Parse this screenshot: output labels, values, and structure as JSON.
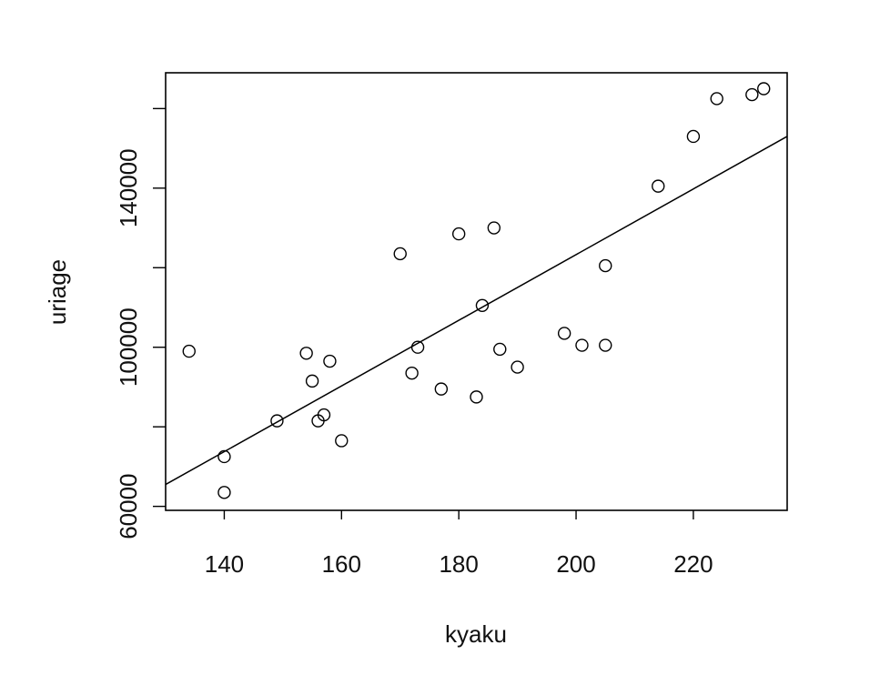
{
  "chart_data": {
    "type": "scatter",
    "xlabel": "kyaku",
    "ylabel": "uriage",
    "xlim": [
      130,
      236
    ],
    "ylim": [
      59000,
      169000
    ],
    "xticks": [
      140,
      160,
      180,
      200,
      220
    ],
    "yticks": [
      60000,
      80000,
      100000,
      120000,
      140000,
      160000
    ],
    "ytick_labels_shown": [
      "60000",
      "100000",
      "140000"
    ],
    "xtick_labels": [
      "140",
      "160",
      "180",
      "200",
      "220"
    ],
    "ytick_labels": [
      "60000",
      "100000",
      "140000"
    ],
    "grid": false,
    "points": [
      [
        134,
        99000
      ],
      [
        140,
        72500
      ],
      [
        140,
        63500
      ],
      [
        149,
        81500
      ],
      [
        154,
        98500
      ],
      [
        155,
        91500
      ],
      [
        156,
        81500
      ],
      [
        157,
        83000
      ],
      [
        158,
        96500
      ],
      [
        160,
        76500
      ],
      [
        170,
        123500
      ],
      [
        172,
        93500
      ],
      [
        173,
        100000
      ],
      [
        177,
        89500
      ],
      [
        180,
        128500
      ],
      [
        183,
        87500
      ],
      [
        184,
        110500
      ],
      [
        186,
        130000
      ],
      [
        187,
        99500
      ],
      [
        190,
        95000
      ],
      [
        198,
        103500
      ],
      [
        201,
        100500
      ],
      [
        205,
        120500
      ],
      [
        205,
        100500
      ],
      [
        214,
        140500
      ],
      [
        220,
        153000
      ],
      [
        224,
        162500
      ],
      [
        230,
        163500
      ],
      [
        232,
        165000
      ]
    ],
    "fit_line": {
      "type": "linear",
      "x": [
        130,
        236
      ],
      "y": [
        65500,
        153000
      ]
    }
  }
}
